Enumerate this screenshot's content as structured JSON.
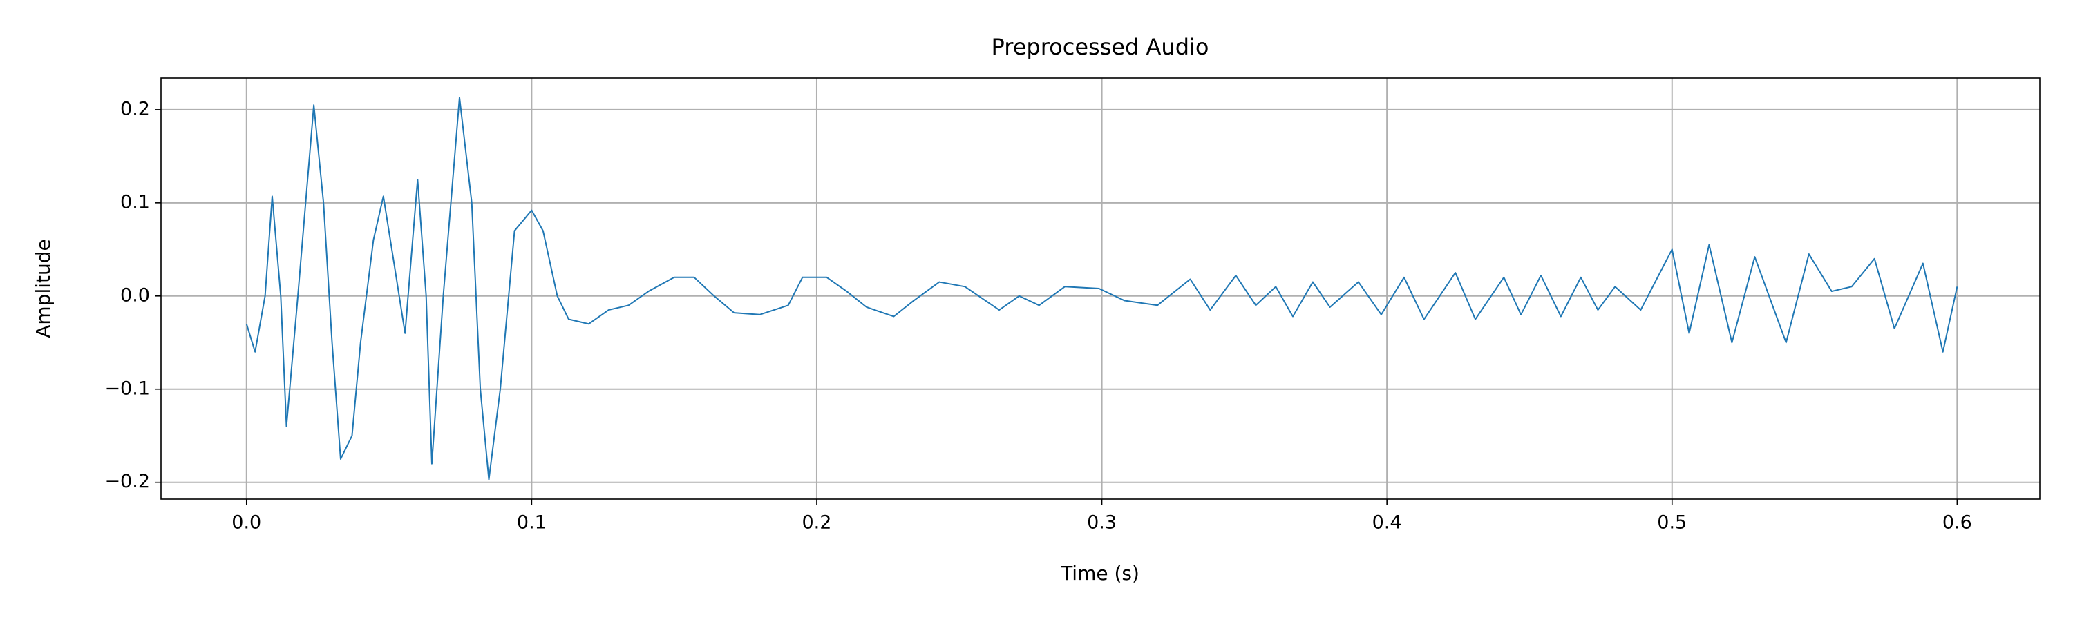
{
  "chart_data": {
    "type": "line",
    "title": "Preprocessed Audio",
    "x_label": "Time (s)",
    "y_label": "Amplitude",
    "x": [
      0,
      0.003,
      0.0065,
      0.009,
      0.012,
      0.014,
      0.018,
      0.0236,
      0.027,
      0.03,
      0.033,
      0.037,
      0.04,
      0.0445,
      0.048,
      0.052,
      0.0556,
      0.06,
      0.063,
      0.065,
      0.069,
      0.0747,
      0.079,
      0.082,
      0.085,
      0.089,
      0.094,
      0.1,
      0.104,
      0.109,
      0.113,
      0.12,
      0.127,
      0.134,
      0.141,
      0.15,
      0.157,
      0.164,
      0.171,
      0.18,
      0.19,
      0.195,
      0.2035,
      0.2105,
      0.2175,
      0.227,
      0.234,
      0.243,
      0.252,
      0.264,
      0.271,
      0.278,
      0.287,
      0.299,
      0.308,
      0.3195,
      0.331,
      0.338,
      0.347,
      0.354,
      0.361,
      0.367,
      0.374,
      0.38,
      0.39,
      0.398,
      0.406,
      0.413,
      0.424,
      0.431,
      0.441,
      0.447,
      0.454,
      0.461,
      0.468,
      0.474,
      0.48,
      0.489,
      0.5,
      0.506,
      0.513,
      0.521,
      0.529,
      0.54,
      0.548,
      0.556,
      0.563,
      0.571,
      0.578,
      0.588,
      0.595,
      0.6
    ],
    "series": [
      {
        "name": "Amplitude",
        "color": "#1f77b4",
        "values": [
          -0.03,
          -0.06,
          0.0,
          0.107,
          0.0,
          -0.14,
          0.0,
          0.205,
          0.1,
          -0.05,
          -0.175,
          -0.15,
          -0.05,
          0.06,
          0.107,
          0.03,
          -0.04,
          0.125,
          0.0,
          -0.18,
          0.0,
          0.213,
          0.1,
          -0.1,
          -0.197,
          -0.1,
          0.07,
          0.092,
          0.07,
          0.0,
          -0.025,
          -0.03,
          -0.015,
          -0.01,
          0.005,
          0.02,
          0.02,
          0.0,
          -0.018,
          -0.02,
          -0.01,
          0.02,
          0.02,
          0.005,
          -0.012,
          -0.022,
          -0.005,
          0.015,
          0.01,
          -0.015,
          0.0,
          -0.01,
          0.01,
          0.008,
          -0.005,
          -0.01,
          0.018,
          -0.015,
          0.022,
          -0.01,
          0.01,
          -0.022,
          0.015,
          -0.012,
          0.015,
          -0.02,
          0.02,
          -0.025,
          0.025,
          -0.025,
          0.02,
          -0.02,
          0.022,
          -0.022,
          0.02,
          -0.015,
          0.01,
          -0.015,
          0.05,
          -0.04,
          0.055,
          -0.05,
          0.042,
          -0.05,
          0.045,
          0.005,
          0.01,
          0.04,
          -0.035,
          0.035,
          -0.06,
          0.01
        ]
      }
    ],
    "xlim": [
      -0.03,
      0.629
    ],
    "ylim": [
      -0.218,
      0.234
    ],
    "xticks": [
      {
        "value": 0,
        "label": "0.0"
      },
      0.1,
      0.2,
      0.3,
      0.4,
      0.5,
      0.6
    ],
    "yticks": [
      {
        "value": -0.2,
        "label": "−0.2"
      },
      {
        "value": -0.1,
        "label": "−0.1"
      },
      {
        "value": 0,
        "label": "0.0"
      },
      0.1,
      0.2
    ],
    "grid": true
  }
}
